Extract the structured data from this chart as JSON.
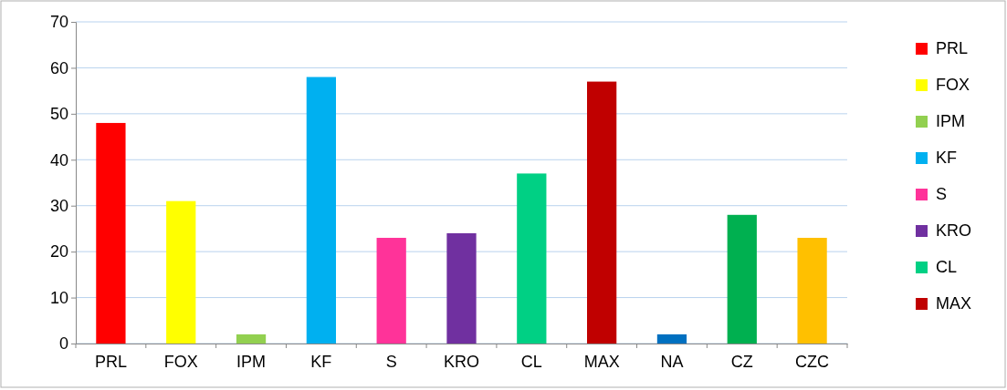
{
  "chart_data": {
    "type": "bar",
    "categories": [
      "PRL",
      "FOX",
      "IPM",
      "KF",
      "S",
      "KRO",
      "CL",
      "MAX",
      "NA",
      "CZ",
      "CZC"
    ],
    "series": [
      {
        "name": "PRL",
        "color": "#ff0000",
        "values": [
          48,
          null,
          null,
          null,
          null,
          null,
          null,
          null,
          null,
          null,
          null
        ]
      },
      {
        "name": "FOX",
        "color": "#ffff00",
        "values": [
          null,
          31,
          null,
          null,
          null,
          null,
          null,
          null,
          null,
          null,
          null
        ]
      },
      {
        "name": "IPM",
        "color": "#92d050",
        "values": [
          null,
          null,
          2,
          null,
          null,
          null,
          null,
          null,
          null,
          null,
          null
        ]
      },
      {
        "name": "KF",
        "color": "#00b0f0",
        "values": [
          null,
          null,
          null,
          58,
          null,
          null,
          null,
          null,
          null,
          null,
          null
        ]
      },
      {
        "name": "S",
        "color": "#ff3399",
        "values": [
          null,
          null,
          null,
          null,
          23,
          null,
          null,
          null,
          null,
          null,
          null
        ]
      },
      {
        "name": "KRO",
        "color": "#7030a0",
        "values": [
          null,
          null,
          null,
          null,
          null,
          24,
          null,
          null,
          null,
          null,
          null
        ]
      },
      {
        "name": "CL",
        "color": "#00d084",
        "values": [
          null,
          null,
          null,
          null,
          null,
          null,
          37,
          null,
          null,
          null,
          null
        ]
      },
      {
        "name": "MAX",
        "color": "#c00000",
        "values": [
          null,
          null,
          null,
          null,
          null,
          null,
          null,
          57,
          null,
          null,
          null
        ]
      },
      {
        "color": "#0070c0",
        "values": [
          null,
          null,
          null,
          null,
          null,
          null,
          null,
          null,
          2,
          null,
          null
        ]
      },
      {
        "color": "#00b050",
        "values": [
          null,
          null,
          null,
          null,
          null,
          null,
          null,
          null,
          null,
          28,
          null
        ]
      },
      {
        "color": "#ffc000",
        "values": [
          null,
          null,
          null,
          null,
          null,
          null,
          null,
          null,
          null,
          null,
          23
        ]
      }
    ],
    "ylim": [
      0,
      70
    ],
    "yticks": [
      0,
      10,
      20,
      30,
      40,
      50,
      60,
      70
    ],
    "grid": "y",
    "legend": "right"
  }
}
